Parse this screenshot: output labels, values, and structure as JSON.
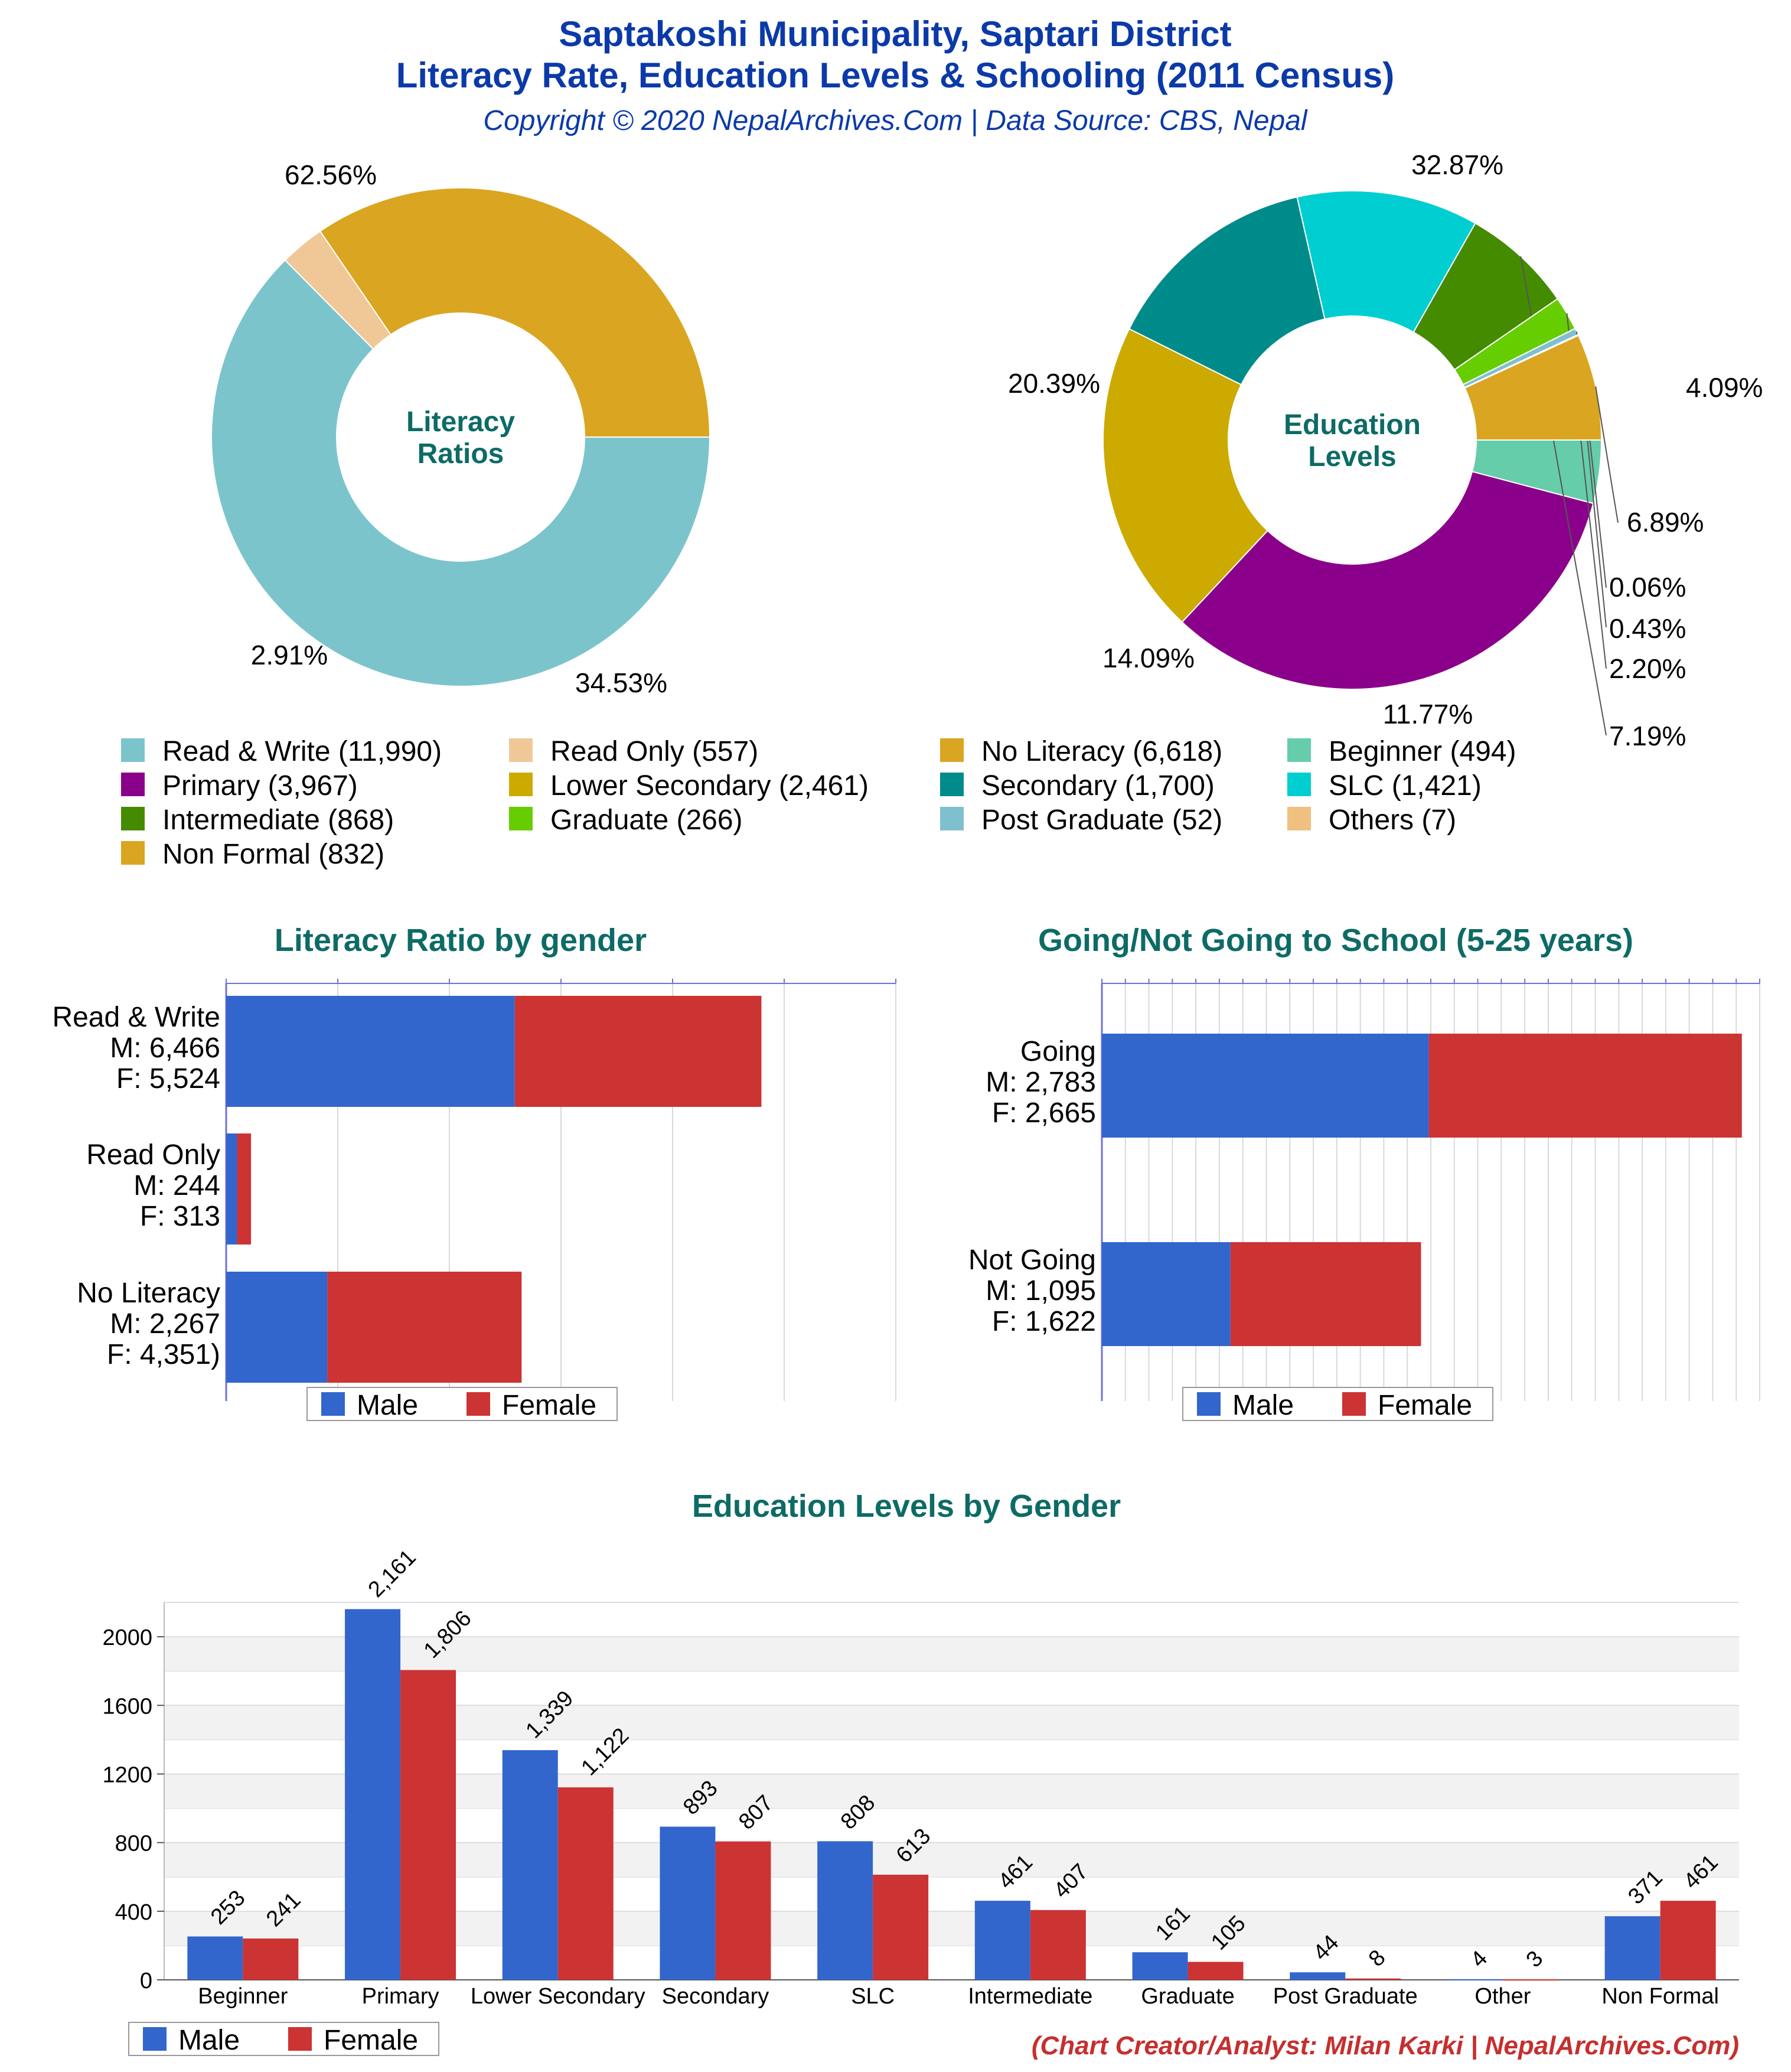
{
  "header": {
    "title_line1": "Saptakoshi Municipality, Saptari District",
    "title_line2": "Literacy Rate, Education Levels & Schooling (2011 Census)",
    "subtitle": "Copyright © 2020 NepalArchives.Com | Data Source: CBS, Nepal"
  },
  "credit": "(Chart Creator/Analyst: Milan Karki | NepalArchives.Com)",
  "colors": {
    "male": "#3366cc",
    "female": "#cc3333",
    "grid": "#d9d9d9",
    "axis": "#6f6fe0"
  },
  "chart_data": [
    {
      "type": "pie",
      "variant": "donut",
      "center_label_lines": [
        "Literacy",
        "Ratios"
      ],
      "slices": [
        {
          "label": "Read & Write (11,990)",
          "value": 11990,
          "pct_label": "62.56%",
          "color": "#7cc4cc"
        },
        {
          "label": "Read Only (557)",
          "value": 557,
          "pct_label": "2.91%",
          "color": "#f0c898"
        },
        {
          "label": "No Literacy (6,618)",
          "value": 6618,
          "pct_label": "34.53%",
          "color": "#daa520"
        }
      ]
    },
    {
      "type": "pie",
      "variant": "donut",
      "center_label_lines": [
        "Education",
        "Levels"
      ],
      "slices": [
        {
          "label": "Beginner (494)",
          "value": 494,
          "pct_label": "4.09%",
          "color": "#66cdaa"
        },
        {
          "label": "Primary (3,967)",
          "value": 3967,
          "pct_label": "32.87%",
          "color": "#8b008b"
        },
        {
          "label": "Lower Secondary (2,461)",
          "value": 2461,
          "pct_label": "20.39%",
          "color": "#ccaa00"
        },
        {
          "label": "Secondary (1,700)",
          "value": 1700,
          "pct_label": "14.09%",
          "color": "#008b8b"
        },
        {
          "label": "SLC (1,421)",
          "value": 1421,
          "pct_label": "11.77%",
          "color": "#00ced1"
        },
        {
          "label": "Intermediate (868)",
          "value": 868,
          "pct_label": "7.19%",
          "color": "#458b00"
        },
        {
          "label": "Graduate (266)",
          "value": 266,
          "pct_label": "2.20%",
          "color": "#66cd00"
        },
        {
          "label": "Post Graduate (52)",
          "value": 52,
          "pct_label": "0.43%",
          "color": "#7ec0ce"
        },
        {
          "label": "Others (7)",
          "value": 7,
          "pct_label": "0.06%",
          "color": "#f0c080"
        },
        {
          "label": "Non Formal (832)",
          "value": 832,
          "pct_label": "6.89%",
          "color": "#daa520"
        }
      ]
    },
    {
      "type": "bar",
      "orientation": "horizontal",
      "stacked": true,
      "title": "Literacy Ratio by gender",
      "categories": [
        {
          "lines": [
            "Read & Write",
            "M: 6,466",
            "F: 5,524"
          ]
        },
        {
          "lines": [
            "Read Only",
            "M: 244",
            "F: 313"
          ]
        },
        {
          "lines": [
            "No Literacy",
            "M: 2,267",
            "F: 4,351)"
          ]
        }
      ],
      "series": [
        {
          "name": "Male",
          "values": [
            6466,
            244,
            2267
          ]
        },
        {
          "name": "Female",
          "values": [
            5524,
            313,
            4351
          ]
        }
      ],
      "xlim": [
        0,
        15000
      ],
      "legend": "bottom"
    },
    {
      "type": "bar",
      "orientation": "horizontal",
      "stacked": true,
      "title": "Going/Not Going to School (5-25 years)",
      "categories": [
        {
          "lines": [
            "Going",
            "M: 2,783",
            "F: 2,665"
          ]
        },
        {
          "lines": [
            "Not Going",
            "M: 1,095",
            "F: 1,622"
          ]
        }
      ],
      "series": [
        {
          "name": "Male",
          "values": [
            2783,
            1095
          ]
        },
        {
          "name": "Female",
          "values": [
            2665,
            1622
          ]
        }
      ],
      "xlim": [
        0,
        5600
      ],
      "legend": "bottom"
    },
    {
      "type": "bar",
      "orientation": "vertical",
      "title": "Education Levels by Gender",
      "categories": [
        "Beginner",
        "Primary",
        "Lower Secondary",
        "Secondary",
        "SLC",
        "Intermediate",
        "Graduate",
        "Post Graduate",
        "Other",
        "Non Formal"
      ],
      "series": [
        {
          "name": "Male",
          "values": [
            253,
            2161,
            1339,
            893,
            808,
            461,
            161,
            44,
            4,
            371
          ],
          "labels": [
            "253",
            "2,161",
            "1,339",
            "893",
            "808",
            "461",
            "161",
            "44",
            "4",
            "371"
          ]
        },
        {
          "name": "Female",
          "values": [
            241,
            1806,
            1122,
            807,
            613,
            407,
            105,
            8,
            3,
            461
          ],
          "labels": [
            "241",
            "1,806",
            "1,122",
            "807",
            "613",
            "407",
            "105",
            "8",
            "3",
            "461"
          ]
        }
      ],
      "ylim": [
        0,
        2200
      ],
      "yticks": [
        "0",
        "400",
        "800",
        "1200",
        "1600",
        "2000"
      ],
      "legend": "bottom-left"
    }
  ]
}
